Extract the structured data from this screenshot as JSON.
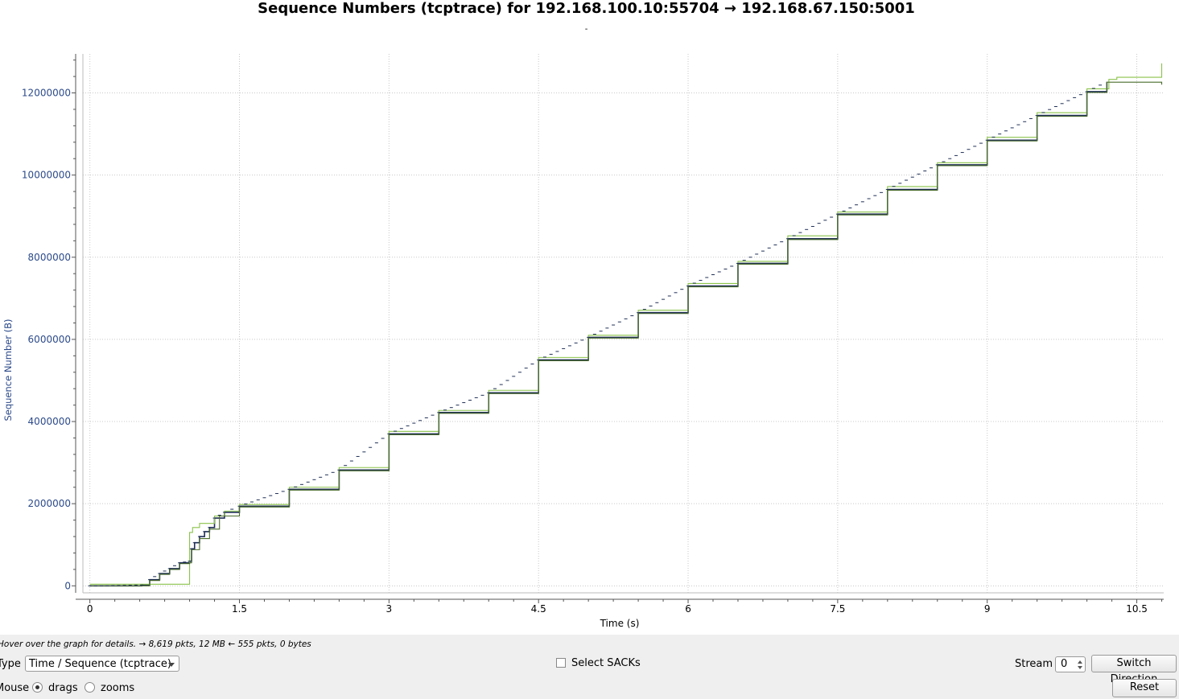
{
  "window": {
    "title": "Sequence Numbers (tcptrace) for 192.168.100.10:55704 → 192.168.67.150:5001",
    "subtitle": "-"
  },
  "chart_data": {
    "type": "line",
    "xlabel": "Time (s)",
    "ylabel": "Sequence Number (B)",
    "xlim": [
      -0.07,
      10.77
    ],
    "ylim": [
      -170000,
      12950000
    ],
    "x_ticks": [
      0,
      1.5,
      3,
      4.5,
      6,
      7.5,
      9,
      10.5
    ],
    "x_tick_labels": [
      "0",
      "1.5",
      "3",
      "4.5",
      "6",
      "7.5",
      "9",
      "10.5"
    ],
    "y_ticks": [
      0,
      2000000,
      4000000,
      6000000,
      8000000,
      10000000,
      12000000
    ],
    "y_tick_labels": [
      "0",
      "2000000",
      "4000000",
      "6000000",
      "8000000",
      "10000000",
      "12000000"
    ],
    "grid": true,
    "series": [
      {
        "role": "data segments",
        "color": "#1f2f55",
        "x": [
          0,
          0.52,
          0.6,
          0.7,
          0.8,
          0.9,
          1.0,
          1.02,
          1.05,
          1.1,
          1.15,
          1.2,
          1.25,
          1.35,
          1.5,
          2,
          2.5,
          3,
          3.5,
          4,
          4.5,
          5,
          5.5,
          6,
          6.5,
          7,
          7.5,
          8,
          8.5,
          9,
          9.5,
          10,
          10.2
        ],
        "y": [
          0,
          20000,
          150000,
          300000,
          420000,
          560000,
          600000,
          900000,
          1050000,
          1200000,
          1320000,
          1420000,
          1650000,
          1790000,
          1940000,
          2350000,
          2820000,
          3700000,
          4220000,
          4700000,
          5500000,
          6050000,
          6650000,
          7300000,
          7850000,
          8450000,
          9050000,
          9650000,
          10250000,
          10850000,
          11450000,
          12030000,
          12270000
        ]
      },
      {
        "role": "receive window",
        "color": "#8bc34a",
        "x": [
          0,
          0.52,
          1.0,
          1.03,
          1.1,
          1.2,
          1.25,
          1.35,
          1.5,
          2,
          2.5,
          3,
          3.5,
          4,
          4.5,
          5,
          5.5,
          6,
          6.5,
          7,
          7.5,
          8,
          8.5,
          9,
          9.5,
          10,
          10.22,
          10.3,
          10.75,
          10.75
        ],
        "y": [
          40000,
          40000,
          1300000,
          1420000,
          1520000,
          1520000,
          1700000,
          1820000,
          1980000,
          2400000,
          2880000,
          3760000,
          4270000,
          4760000,
          5560000,
          6100000,
          6710000,
          7360000,
          7900000,
          8520000,
          9100000,
          9720000,
          10300000,
          10920000,
          11520000,
          12100000,
          12330000,
          12380000,
          12380000,
          12720000
        ]
      },
      {
        "role": "acknowledgments",
        "color": "#4a6b2a",
        "x": [
          0,
          0.52,
          0.6,
          0.7,
          0.8,
          0.9,
          1.0,
          1.02,
          1.1,
          1.2,
          1.3,
          1.5,
          2,
          2.5,
          3,
          3.5,
          4,
          4.5,
          5,
          5.5,
          6,
          6.5,
          7,
          7.5,
          8,
          8.5,
          9,
          9.5,
          10,
          10.2,
          10.75,
          10.75
        ],
        "y": [
          0,
          0,
          130000,
          280000,
          400000,
          540000,
          560000,
          880000,
          1150000,
          1380000,
          1700000,
          1920000,
          2330000,
          2800000,
          3680000,
          4200000,
          4680000,
          5480000,
          6030000,
          6630000,
          7280000,
          7830000,
          8430000,
          9030000,
          9630000,
          10230000,
          10830000,
          11430000,
          12010000,
          12260000,
          12260000,
          12200000
        ]
      }
    ]
  },
  "hint": "Hover over the graph for details. → 8,619 pkts, 12 MB ← 555 pkts, 0 bytes",
  "controls": {
    "type_label": "Type",
    "type_value": "Time / Sequence (tcptrace)",
    "select_sacks_label": "Select SACKs",
    "stream_label": "Stream",
    "stream_value": "0",
    "switch_direction_label": "Switch Direction",
    "mouse_label": "Mouse",
    "drags_label": "drags",
    "zooms_label": "zooms",
    "reset_label": "Reset"
  }
}
